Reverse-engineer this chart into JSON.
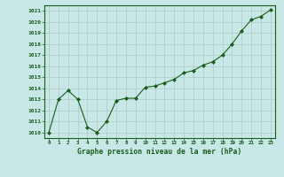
{
  "x": [
    0,
    1,
    2,
    3,
    4,
    5,
    6,
    7,
    8,
    9,
    10,
    11,
    12,
    13,
    14,
    15,
    16,
    17,
    18,
    19,
    20,
    21,
    22,
    23
  ],
  "y": [
    1010.0,
    1013.0,
    1013.8,
    1013.0,
    1010.5,
    1010.0,
    1011.0,
    1012.9,
    1013.1,
    1013.1,
    1014.1,
    1014.2,
    1014.5,
    1014.8,
    1015.4,
    1015.6,
    1016.1,
    1016.4,
    1017.0,
    1018.0,
    1019.2,
    1020.2,
    1020.5,
    1021.1
  ],
  "line_color": "#1a5c1a",
  "marker": "D",
  "marker_size": 2.0,
  "bg_color": "#c8e8e8",
  "grid_color": "#b0c8c8",
  "xlabel": "Graphe pression niveau de la mer (hPa)",
  "xlabel_color": "#1a5c1a",
  "tick_color": "#1a5c1a",
  "ylim": [
    1009.5,
    1021.5
  ],
  "xlim": [
    -0.5,
    23.5
  ],
  "yticks": [
    1010,
    1011,
    1012,
    1013,
    1014,
    1015,
    1016,
    1017,
    1018,
    1019,
    1020,
    1021
  ],
  "xticks": [
    0,
    1,
    2,
    3,
    4,
    5,
    6,
    7,
    8,
    9,
    10,
    11,
    12,
    13,
    14,
    15,
    16,
    17,
    18,
    19,
    20,
    21,
    22,
    23
  ],
  "figsize": [
    3.2,
    2.0
  ],
  "dpi": 100
}
